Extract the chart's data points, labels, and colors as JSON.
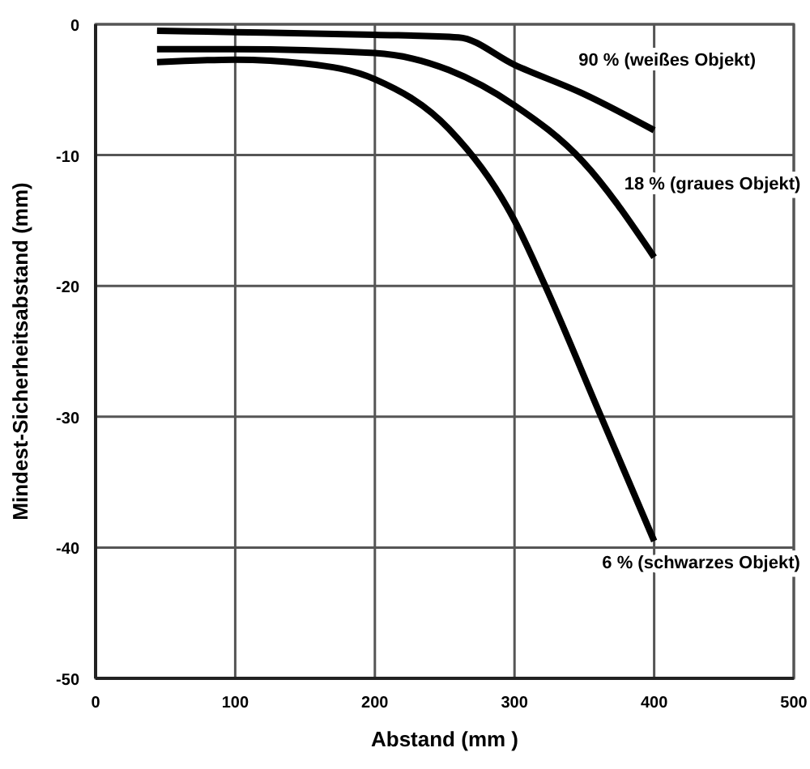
{
  "chart_data": {
    "type": "line",
    "xlabel": "Abstand (mm )",
    "ylabel": "Mindest-Sicherheitsabstand (mm)",
    "xlim": [
      0,
      500
    ],
    "ylim": [
      -50,
      0
    ],
    "xticks": [
      0,
      100,
      200,
      300,
      400,
      500
    ],
    "yticks": [
      0,
      -10,
      -20,
      -30,
      -40,
      -50
    ],
    "grid": true,
    "line_style": "solid",
    "series": [
      {
        "name": "90 % (weißes Objekt)",
        "color": "#000000",
        "x": [
          44,
          100,
          200,
          260,
          300,
          349,
          400
        ],
        "values": [
          -0.5,
          -0.6,
          -0.8,
          -1.0,
          -3.1,
          -5.3,
          -8.1
        ]
      },
      {
        "name": "18 % (graues Objekt)",
        "color": "#000000",
        "x": [
          44,
          100,
          200,
          253,
          300,
          349,
          400
        ],
        "values": [
          -1.9,
          -1.9,
          -2.2,
          -3.5,
          -6.2,
          -10.5,
          -17.8
        ]
      },
      {
        "name": "6 % (schwarzes Objekt)",
        "color": "#000000",
        "x": [
          44,
          100,
          150,
          200,
          253,
          300,
          322,
          362,
          400
        ],
        "values": [
          -2.9,
          -2.7,
          -3.0,
          -4.2,
          -8,
          -15,
          -20,
          -30,
          -39.5
        ]
      }
    ]
  }
}
